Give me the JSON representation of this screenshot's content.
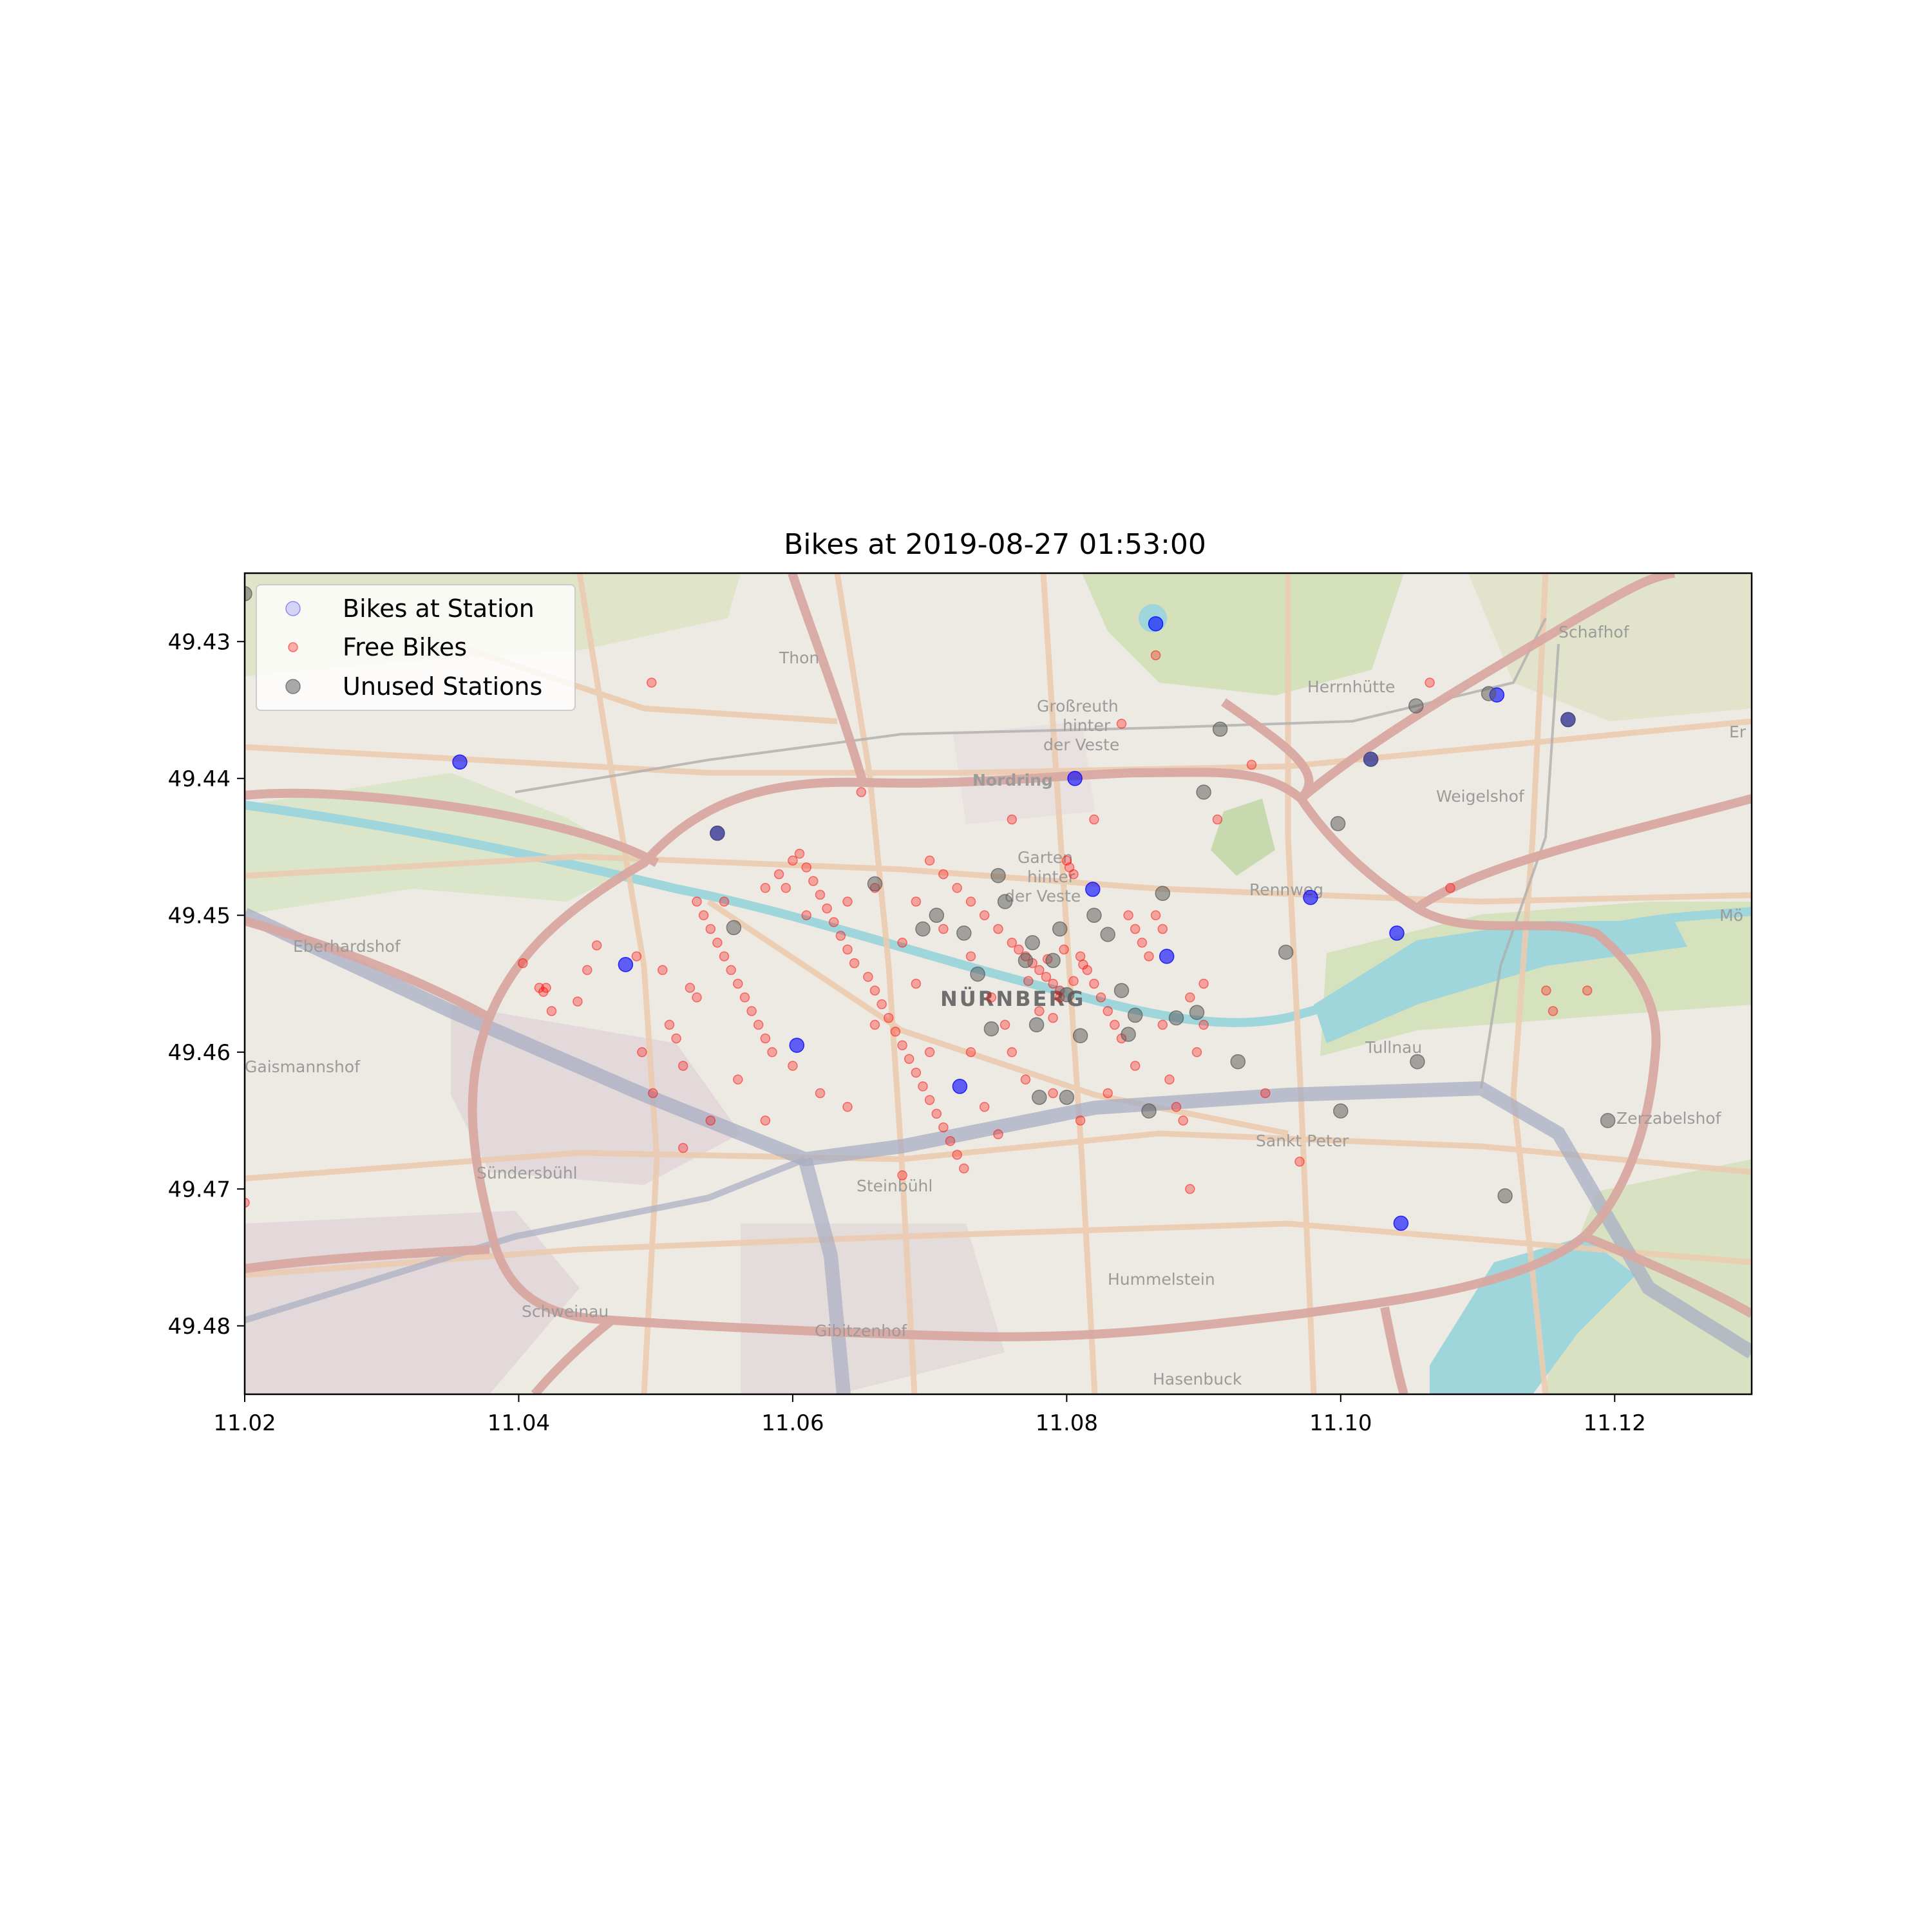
{
  "chart_data": {
    "type": "scatter",
    "title": "Bikes at 2019-08-27 01:53:00",
    "xlabel": "",
    "ylabel": "",
    "xlim": [
      11.02,
      11.13
    ],
    "ylim": [
      49.485,
      49.425
    ],
    "y_axis_inverted": true,
    "xticks": [
      "11.02",
      "11.04",
      "11.06",
      "11.08",
      "11.10",
      "11.12"
    ],
    "xtick_values": [
      11.02,
      11.04,
      11.06,
      11.08,
      11.1,
      11.12
    ],
    "yticks": [
      "49.43",
      "49.44",
      "49.45",
      "49.46",
      "49.47",
      "49.48"
    ],
    "ytick_values": [
      49.43,
      49.44,
      49.45,
      49.46,
      49.47,
      49.48
    ],
    "grid": false,
    "legend_position": "upper-left",
    "background": "street map of Nürnberg",
    "series": [
      {
        "name": "Bikes at Station",
        "color": "#0000ff",
        "opacity": 0.6,
        "points": [
          [
            11.0357,
            49.4388
          ],
          [
            11.0545,
            49.444
          ],
          [
            11.0478,
            49.4536
          ],
          [
            11.0603,
            49.4595
          ],
          [
            11.0722,
            49.4625
          ],
          [
            11.0806,
            49.44
          ],
          [
            11.0819,
            49.4481
          ],
          [
            11.0865,
            49.4287
          ],
          [
            11.0873,
            49.453
          ],
          [
            11.0978,
            49.4487
          ],
          [
            11.1041,
            49.4513
          ],
          [
            11.1022,
            49.4386
          ],
          [
            11.1114,
            49.4339
          ],
          [
            11.1166,
            49.4357
          ],
          [
            11.1044,
            49.4725
          ]
        ]
      },
      {
        "name": "Free Bikes",
        "color": "#ff0000",
        "opacity": 0.3,
        "points": [
          [
            11.0415,
            49.4553
          ],
          [
            11.0418,
            49.4556
          ],
          [
            11.042,
            49.4553
          ],
          [
            11.0443,
            49.4563
          ],
          [
            11.0424,
            49.457
          ],
          [
            11.045,
            49.454
          ],
          [
            11.0457,
            49.4522
          ],
          [
            11.0403,
            49.4535
          ],
          [
            11.0497,
            49.433
          ],
          [
            11.0486,
            49.453
          ],
          [
            11.049,
            49.46
          ],
          [
            11.0498,
            49.463
          ],
          [
            11.0505,
            49.454
          ],
          [
            11.051,
            49.458
          ],
          [
            11.0515,
            49.459
          ],
          [
            11.052,
            49.461
          ],
          [
            11.0525,
            49.4553
          ],
          [
            11.053,
            49.449
          ],
          [
            11.0535,
            49.45
          ],
          [
            11.054,
            49.451
          ],
          [
            11.0545,
            49.452
          ],
          [
            11.055,
            49.453
          ],
          [
            11.0555,
            49.454
          ],
          [
            11.056,
            49.455
          ],
          [
            11.0565,
            49.456
          ],
          [
            11.057,
            49.457
          ],
          [
            11.0575,
            49.458
          ],
          [
            11.058,
            49.459
          ],
          [
            11.0585,
            49.46
          ],
          [
            11.059,
            49.447
          ],
          [
            11.0595,
            49.448
          ],
          [
            11.06,
            49.446
          ],
          [
            11.0605,
            49.4455
          ],
          [
            11.061,
            49.4465
          ],
          [
            11.0615,
            49.4475
          ],
          [
            11.062,
            49.4485
          ],
          [
            11.0625,
            49.4495
          ],
          [
            11.063,
            49.4505
          ],
          [
            11.0635,
            49.4515
          ],
          [
            11.064,
            49.4525
          ],
          [
            11.0645,
            49.4535
          ],
          [
            11.065,
            49.441
          ],
          [
            11.0655,
            49.4545
          ],
          [
            11.066,
            49.4555
          ],
          [
            11.0665,
            49.4565
          ],
          [
            11.067,
            49.4575
          ],
          [
            11.0675,
            49.4585
          ],
          [
            11.068,
            49.4595
          ],
          [
            11.0685,
            49.4605
          ],
          [
            11.069,
            49.4615
          ],
          [
            11.0695,
            49.4625
          ],
          [
            11.07,
            49.4635
          ],
          [
            11.0705,
            49.4645
          ],
          [
            11.071,
            49.4655
          ],
          [
            11.0715,
            49.4665
          ],
          [
            11.072,
            49.4675
          ],
          [
            11.0725,
            49.4685
          ],
          [
            11.07,
            49.446
          ],
          [
            11.071,
            49.447
          ],
          [
            11.072,
            49.448
          ],
          [
            11.073,
            49.449
          ],
          [
            11.074,
            49.45
          ],
          [
            11.075,
            49.451
          ],
          [
            11.076,
            49.452
          ],
          [
            11.0765,
            49.4525
          ],
          [
            11.077,
            49.453
          ],
          [
            11.0775,
            49.4535
          ],
          [
            11.078,
            49.454
          ],
          [
            11.0785,
            49.4545
          ],
          [
            11.079,
            49.455
          ],
          [
            11.0795,
            49.4555
          ],
          [
            11.08,
            49.446
          ],
          [
            11.0802,
            49.4465
          ],
          [
            11.0805,
            49.447
          ],
          [
            11.081,
            49.453
          ],
          [
            11.0815,
            49.454
          ],
          [
            11.082,
            49.455
          ],
          [
            11.0825,
            49.456
          ],
          [
            11.083,
            49.457
          ],
          [
            11.0835,
            49.458
          ],
          [
            11.084,
            49.459
          ],
          [
            11.0845,
            49.45
          ],
          [
            11.085,
            49.451
          ],
          [
            11.0855,
            49.452
          ],
          [
            11.086,
            49.453
          ],
          [
            11.0865,
            49.45
          ],
          [
            11.087,
            49.451
          ],
          [
            11.0875,
            49.462
          ],
          [
            11.088,
            49.464
          ],
          [
            11.0885,
            49.465
          ],
          [
            11.089,
            49.47
          ],
          [
            11.0895,
            49.46
          ],
          [
            11.09,
            49.455
          ],
          [
            11.091,
            49.443
          ],
          [
            11.0935,
            49.439
          ],
          [
            11.0945,
            49.463
          ],
          [
            11.097,
            49.468
          ],
          [
            11.082,
            49.443
          ],
          [
            11.084,
            49.436
          ],
          [
            11.0865,
            49.431
          ],
          [
            11.076,
            49.443
          ],
          [
            11.068,
            49.469
          ],
          [
            11.066,
            49.458
          ],
          [
            11.064,
            49.464
          ],
          [
            11.062,
            49.463
          ],
          [
            11.06,
            49.461
          ],
          [
            11.058,
            49.465
          ],
          [
            11.056,
            49.462
          ],
          [
            11.054,
            49.465
          ],
          [
            11.052,
            49.467
          ],
          [
            11.053,
            49.456
          ],
          [
            11.055,
            49.449
          ],
          [
            11.058,
            49.448
          ],
          [
            11.061,
            49.45
          ],
          [
            11.064,
            49.449
          ],
          [
            11.066,
            49.448
          ],
          [
            11.069,
            49.449
          ],
          [
            11.071,
            49.451
          ],
          [
            11.073,
            49.453
          ],
          [
            11.0745,
            49.456
          ],
          [
            11.0755,
            49.458
          ],
          [
            11.076,
            49.46
          ],
          [
            11.074,
            49.464
          ],
          [
            11.075,
            49.466
          ],
          [
            11.07,
            49.46
          ],
          [
            11.069,
            49.455
          ],
          [
            11.068,
            49.452
          ],
          [
            11.073,
            49.46
          ],
          [
            11.077,
            49.462
          ],
          [
            11.079,
            49.463
          ],
          [
            11.081,
            49.465
          ],
          [
            11.083,
            49.463
          ],
          [
            11.085,
            49.461
          ],
          [
            11.087,
            49.458
          ],
          [
            11.089,
            49.456
          ],
          [
            11.09,
            49.458
          ],
          [
            11.1065,
            49.433
          ],
          [
            11.115,
            49.4555
          ],
          [
            11.1155,
            49.457
          ],
          [
            11.118,
            49.4555
          ],
          [
            11.02,
            49.471
          ],
          [
            11.108,
            49.448
          ],
          [
            11.078,
            49.457
          ],
          [
            11.079,
            49.4575
          ],
          [
            11.0795,
            49.456
          ],
          [
            11.0805,
            49.4548
          ],
          [
            11.0812,
            49.4536
          ],
          [
            11.0798,
            49.4525
          ],
          [
            11.0786,
            49.4532
          ],
          [
            11.0772,
            49.4548
          ]
        ]
      },
      {
        "name": "Unused Stations",
        "color": "#555555",
        "opacity": 0.5,
        "points": [
          [
            11.0545,
            49.444
          ],
          [
            11.0557,
            49.4509
          ],
          [
            11.066,
            49.4477
          ],
          [
            11.075,
            49.4471
          ],
          [
            11.0755,
            49.449
          ],
          [
            11.0695,
            49.451
          ],
          [
            11.0705,
            49.45
          ],
          [
            11.0725,
            49.4513
          ],
          [
            11.0735,
            49.4543
          ],
          [
            11.0745,
            49.4583
          ],
          [
            11.077,
            49.4533
          ],
          [
            11.0775,
            49.452
          ],
          [
            11.079,
            49.4533
          ],
          [
            11.0795,
            49.451
          ],
          [
            11.08,
            49.4558
          ],
          [
            11.081,
            49.4588
          ],
          [
            11.0778,
            49.458
          ],
          [
            11.08,
            49.4633
          ],
          [
            11.078,
            49.4633
          ],
          [
            11.082,
            49.45
          ],
          [
            11.083,
            49.4514
          ],
          [
            11.084,
            49.4555
          ],
          [
            11.0845,
            49.4587
          ],
          [
            11.085,
            49.4573
          ],
          [
            11.086,
            49.4643
          ],
          [
            11.087,
            49.4484
          ],
          [
            11.088,
            49.4575
          ],
          [
            11.0895,
            49.4571
          ],
          [
            11.09,
            49.441
          ],
          [
            11.0912,
            49.4364
          ],
          [
            11.0925,
            49.4607
          ],
          [
            11.096,
            49.4527
          ],
          [
            11.0998,
            49.4433
          ],
          [
            11.1,
            49.4643
          ],
          [
            11.1022,
            49.4386
          ],
          [
            11.1055,
            49.4347
          ],
          [
            11.1056,
            49.4607
          ],
          [
            11.1108,
            49.4338
          ],
          [
            11.1166,
            49.4357
          ],
          [
            11.112,
            49.4705
          ],
          [
            11.1195,
            49.465
          ],
          [
            11.02,
            49.4265
          ]
        ]
      }
    ]
  },
  "map": {
    "labels": {
      "thon": "Thon",
      "grossreuth1": "Großreuth",
      "grossreuth2": "hinter",
      "grossreuth3": "der Veste",
      "nordring": "Nordring",
      "herrnhutte": "Herrnhütte",
      "schafhof": "Schafhof",
      "er": "Er",
      "weigelshof": "Weigelshof",
      "garten1": "Garten",
      "garten2": "hinter",
      "garten3": "der Veste",
      "renweg": "Rennweg",
      "mo": "Mö",
      "eberhardshof": "Eberhardshof",
      "nurnberg": "NÜRNBERG",
      "tullnau": "Tullnau",
      "gaismannshof": "Gaismannshof",
      "zerzabelshof": "Zerzabelshof",
      "sanktpeter": "Sankt Peter",
      "sundersbuhl": "Sündersbühl",
      "steinbuhl": "Steinbühl",
      "hummelstein": "Hummelstein",
      "schweinau": "Schweinau",
      "gibitzenhof": "Gibitzenhof",
      "hasenbuck": "Hasenbuck"
    },
    "colors": {
      "base": "#eae7df",
      "green": "#c8d9a8",
      "water": "#8fcfd6",
      "major_road": "#d39a92",
      "minor_road": "#e9c3a3",
      "rail": "#9aa0b8",
      "industrial": "#d8c9cf"
    }
  }
}
